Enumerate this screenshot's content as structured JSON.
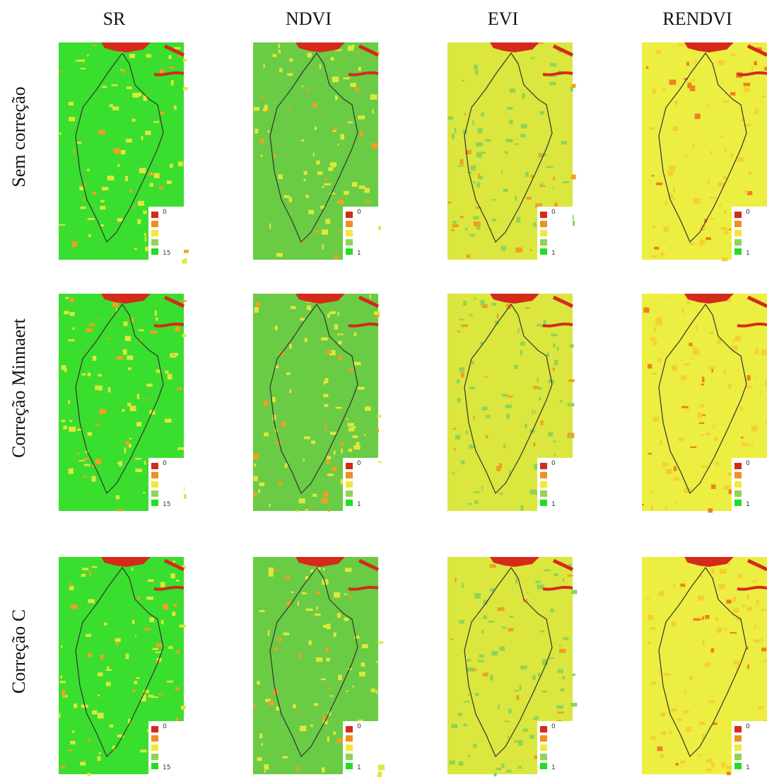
{
  "columns": [
    "SR",
    "NDVI",
    "EVI",
    "RENDVI"
  ],
  "rows": [
    "Sem correção",
    "Correção Minnaert",
    "Correção C"
  ],
  "legends": [
    {
      "top": "0",
      "bottom": "15"
    },
    {
      "top": "0",
      "bottom": "1"
    },
    {
      "top": "0",
      "bottom": "1"
    },
    {
      "top": "0",
      "bottom": "1"
    }
  ]
}
